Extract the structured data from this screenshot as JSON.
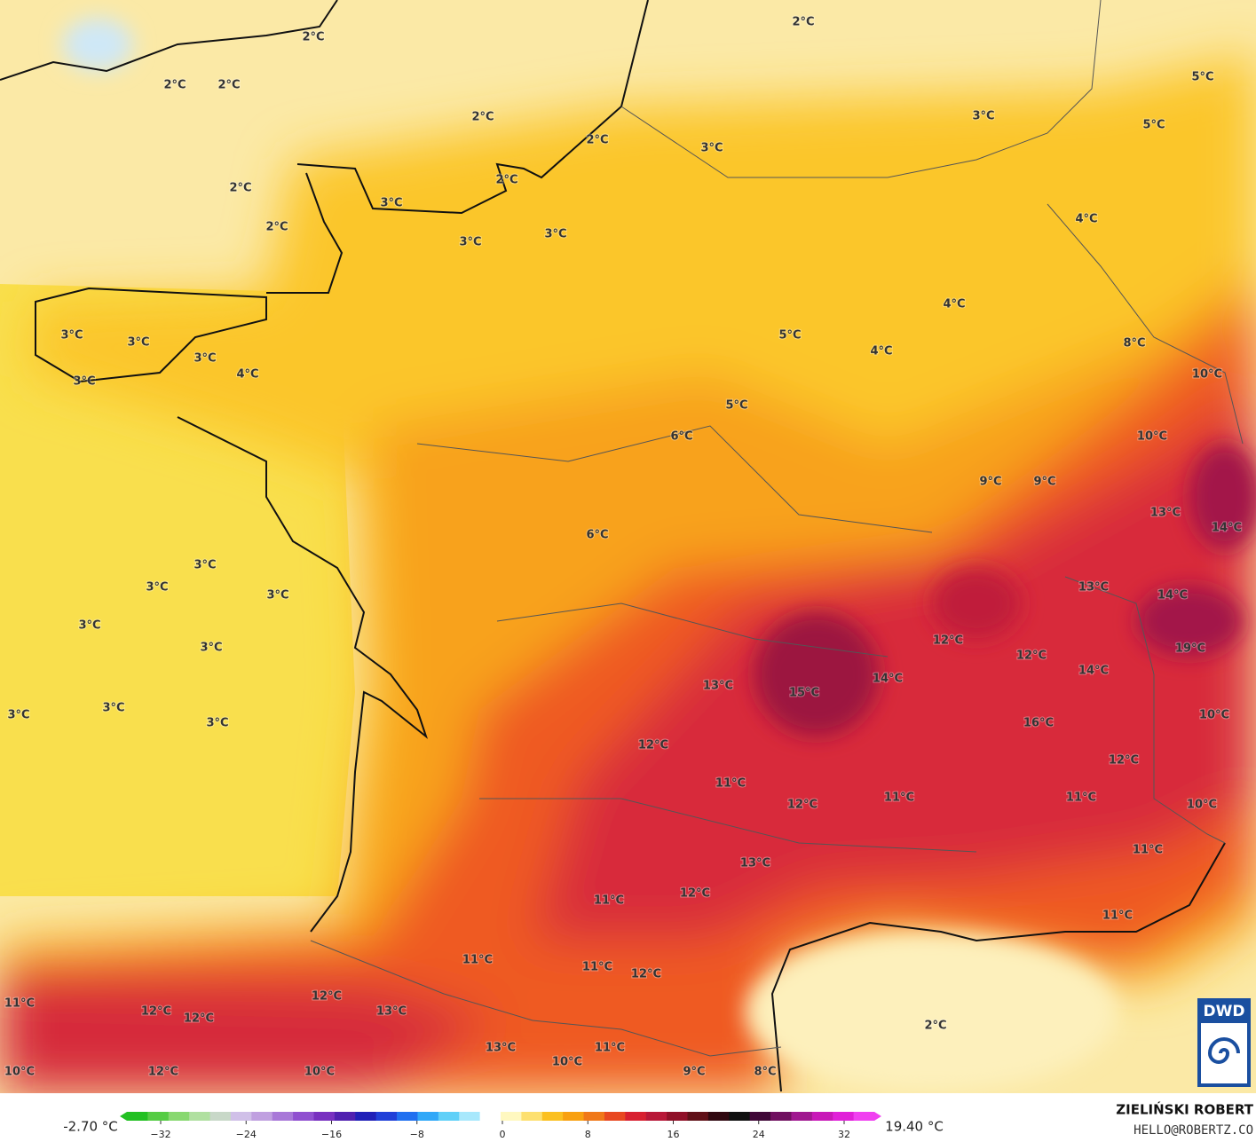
{
  "map_labels": [
    "2°C",
    "2°C",
    "2°C",
    "2°C",
    "2°C",
    "2°C",
    "2°C",
    "2°C",
    "2°C",
    "3°C",
    "3°C",
    "3°C",
    "3°C",
    "3°C",
    "5°C",
    "5°C",
    "4°C",
    "4°C",
    "8°C",
    "10°C",
    "10°C",
    "5°C",
    "4°C",
    "5°C",
    "6°C",
    "9°C",
    "9°C",
    "13°C",
    "14°C",
    "6°C",
    "3°C",
    "3°C",
    "3°C",
    "4°C",
    "3°C",
    "3°C",
    "3°C",
    "3°C",
    "3°C",
    "3°C",
    "3°C",
    "3°C",
    "3°C",
    "13°C",
    "14°C",
    "12°C",
    "12°C",
    "19°C",
    "13°C",
    "15°C",
    "14°C",
    "14°C",
    "16°C",
    "10°C",
    "12°C",
    "11°C",
    "12°C",
    "11°C",
    "11°C",
    "12°C",
    "10°C",
    "13°C",
    "11°C",
    "11°C",
    "12°C",
    "11°C",
    "11°C",
    "11°C",
    "12°C",
    "12°C",
    "13°C",
    "11°C",
    "12°C",
    "12°C",
    "13°C",
    "10°C",
    "11°C",
    "9°C",
    "8°C",
    "2°C",
    "12°C",
    "10°C",
    "10°C"
  ],
  "legend": {
    "min_label": "-2.70 °C",
    "max_label": "19.40 °C",
    "ticks": [
      "−32",
      "−24",
      "−16",
      "−8",
      "0",
      "8",
      "16",
      "24",
      "32"
    ]
  },
  "credits": {
    "author": "ZIELIŃSKI ROBERT",
    "contact": "HELLO@ROBERTZ.CO"
  },
  "logo": {
    "text": "DWD"
  }
}
